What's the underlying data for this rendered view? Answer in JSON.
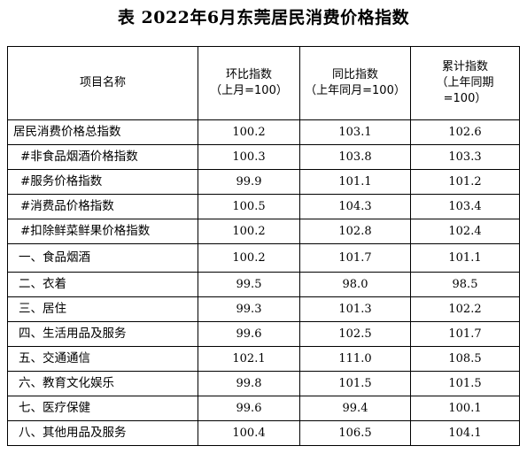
{
  "title": "表 2022年6月东莞居民消费价格指数",
  "headers": {
    "name": "项目名称",
    "mom": [
      "环比指数",
      "（上月=100）"
    ],
    "yoy": [
      "同比指数",
      "（上年同月=100）"
    ],
    "cum": [
      "累计指数",
      "（上年同期",
      "=100）"
    ]
  },
  "rows": [
    {
      "name": "居民消费价格总指数",
      "mom": "100.2",
      "yoy": "103.1",
      "cum": "102.6"
    },
    {
      "name": "#非食品烟酒价格指数",
      "mom": "100.3",
      "yoy": "103.8",
      "cum": "103.3"
    },
    {
      "name": "#服务价格指数",
      "mom": "99.9",
      "yoy": "101.1",
      "cum": "101.2"
    },
    {
      "name": "#消费品价格指数",
      "mom": "100.5",
      "yoy": "104.3",
      "cum": "103.4"
    },
    {
      "name": "#扣除鲜菜鲜果价格指数",
      "mom": "100.2",
      "yoy": "102.8",
      "cum": "102.4"
    },
    {
      "name": "一、食品烟酒",
      "mom": "100.2",
      "yoy": "101.7",
      "cum": "101.1"
    },
    {
      "name": "二、衣着",
      "mom": "99.5",
      "yoy": "98.0",
      "cum": "98.5"
    },
    {
      "name": "三、居住",
      "mom": "99.3",
      "yoy": "101.3",
      "cum": "102.2"
    },
    {
      "name": "四、生活用品及服务",
      "mom": "99.6",
      "yoy": "102.5",
      "cum": "101.7"
    },
    {
      "name": "五、交通通信",
      "mom": "102.1",
      "yoy": "111.0",
      "cum": "108.5"
    },
    {
      "name": "六、教育文化娱乐",
      "mom": "99.8",
      "yoy": "101.5",
      "cum": "101.5"
    },
    {
      "name": "七、医疗保健",
      "mom": "99.6",
      "yoy": "99.4",
      "cum": "100.1"
    },
    {
      "name": "八、其他用品及服务",
      "mom": "100.4",
      "yoy": "106.5",
      "cum": "104.1"
    }
  ]
}
